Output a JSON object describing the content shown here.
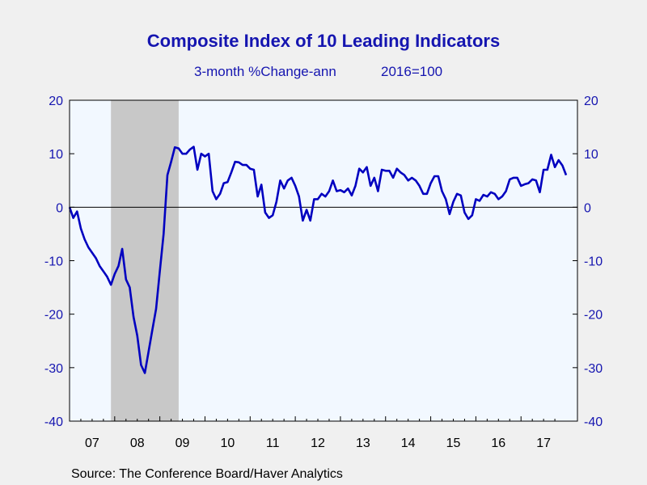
{
  "chart_data": {
    "type": "line",
    "title": "Composite Index of 10 Leading Indicators",
    "subtitle_left": "3-month %Change-ann",
    "subtitle_right": "2016=100",
    "source": "Source:  The Conference Board/Haver Analytics",
    "ylim": [
      -40,
      20
    ],
    "yticks": [
      "20",
      "10",
      "0",
      "-10",
      "-20",
      "-30",
      "-40"
    ],
    "xlim": [
      2007.0,
      2018.25
    ],
    "xticks": [
      "07",
      "08",
      "09",
      "10",
      "11",
      "12",
      "13",
      "14",
      "15",
      "16",
      "17"
    ],
    "grid": false,
    "recession_shading": {
      "start": 2007.917,
      "end": 2009.417
    },
    "colors": {
      "line": "#0000c0",
      "text": "#1515b0",
      "recession": "#c8c8c8",
      "plot_bg": "#f2f8ff",
      "page_bg": "#f0f0f0"
    },
    "series": [
      {
        "values": [
          [
            2007.0,
            0.0
          ],
          [
            2007.083,
            -2.0
          ],
          [
            2007.167,
            -0.8
          ],
          [
            2007.25,
            -4.0
          ],
          [
            2007.333,
            -6.0
          ],
          [
            2007.417,
            -7.5
          ],
          [
            2007.5,
            -8.5
          ],
          [
            2007.583,
            -9.5
          ],
          [
            2007.667,
            -11.0
          ],
          [
            2007.75,
            -12.0
          ],
          [
            2007.833,
            -13.0
          ],
          [
            2007.917,
            -14.5
          ],
          [
            2008.0,
            -12.5
          ],
          [
            2008.083,
            -11.0
          ],
          [
            2008.167,
            -7.8
          ],
          [
            2008.25,
            -13.5
          ],
          [
            2008.333,
            -15.0
          ],
          [
            2008.417,
            -20.5
          ],
          [
            2008.5,
            -24.0
          ],
          [
            2008.583,
            -29.5
          ],
          [
            2008.667,
            -31.0
          ],
          [
            2008.75,
            -27.0
          ],
          [
            2008.833,
            -23.0
          ],
          [
            2008.917,
            -19.0
          ],
          [
            2009.0,
            -12.0
          ],
          [
            2009.083,
            -5.0
          ],
          [
            2009.167,
            6.0
          ],
          [
            2009.25,
            8.5
          ],
          [
            2009.333,
            11.2
          ],
          [
            2009.417,
            11.0
          ],
          [
            2009.5,
            10.0
          ],
          [
            2009.583,
            10.0
          ],
          [
            2009.667,
            10.8
          ],
          [
            2009.75,
            11.3
          ],
          [
            2009.833,
            7.0
          ],
          [
            2009.917,
            10.0
          ],
          [
            2010.0,
            9.5
          ],
          [
            2010.083,
            10.0
          ],
          [
            2010.167,
            3.0
          ],
          [
            2010.25,
            1.5
          ],
          [
            2010.333,
            2.5
          ],
          [
            2010.417,
            4.5
          ],
          [
            2010.5,
            4.7
          ],
          [
            2010.583,
            6.5
          ],
          [
            2010.667,
            8.5
          ],
          [
            2010.75,
            8.4
          ],
          [
            2010.833,
            7.9
          ],
          [
            2010.917,
            7.9
          ],
          [
            2011.0,
            7.2
          ],
          [
            2011.083,
            7.0
          ],
          [
            2011.167,
            2.0
          ],
          [
            2011.25,
            4.2
          ],
          [
            2011.333,
            -1.0
          ],
          [
            2011.417,
            -2.0
          ],
          [
            2011.5,
            -1.5
          ],
          [
            2011.583,
            1.0
          ],
          [
            2011.667,
            5.0
          ],
          [
            2011.75,
            3.5
          ],
          [
            2011.833,
            5.0
          ],
          [
            2011.917,
            5.5
          ],
          [
            2012.0,
            4.0
          ],
          [
            2012.083,
            2.0
          ],
          [
            2012.167,
            -2.5
          ],
          [
            2012.25,
            -0.5
          ],
          [
            2012.333,
            -2.5
          ],
          [
            2012.417,
            1.5
          ],
          [
            2012.5,
            1.5
          ],
          [
            2012.583,
            2.5
          ],
          [
            2012.667,
            2.0
          ],
          [
            2012.75,
            3.0
          ],
          [
            2012.833,
            5.0
          ],
          [
            2012.917,
            3.0
          ],
          [
            2013.0,
            3.2
          ],
          [
            2013.083,
            2.8
          ],
          [
            2013.167,
            3.5
          ],
          [
            2013.25,
            2.2
          ],
          [
            2013.333,
            4.0
          ],
          [
            2013.417,
            7.2
          ],
          [
            2013.5,
            6.5
          ],
          [
            2013.583,
            7.5
          ],
          [
            2013.667,
            4.0
          ],
          [
            2013.75,
            5.5
          ],
          [
            2013.833,
            3.0
          ],
          [
            2013.917,
            7.0
          ],
          [
            2014.0,
            6.8
          ],
          [
            2014.083,
            6.8
          ],
          [
            2014.167,
            5.5
          ],
          [
            2014.25,
            7.2
          ],
          [
            2014.333,
            6.5
          ],
          [
            2014.417,
            6.0
          ],
          [
            2014.5,
            5.0
          ],
          [
            2014.583,
            5.5
          ],
          [
            2014.667,
            5.0
          ],
          [
            2014.75,
            4.0
          ],
          [
            2014.833,
            2.5
          ],
          [
            2014.917,
            2.5
          ],
          [
            2015.0,
            4.5
          ],
          [
            2015.083,
            5.8
          ],
          [
            2015.167,
            5.8
          ],
          [
            2015.25,
            3.0
          ],
          [
            2015.333,
            1.5
          ],
          [
            2015.417,
            -1.3
          ],
          [
            2015.5,
            1.0
          ],
          [
            2015.583,
            2.5
          ],
          [
            2015.667,
            2.2
          ],
          [
            2015.75,
            -1.0
          ],
          [
            2015.833,
            -2.2
          ],
          [
            2015.917,
            -1.5
          ],
          [
            2016.0,
            1.5
          ],
          [
            2016.083,
            1.2
          ],
          [
            2016.167,
            2.3
          ],
          [
            2016.25,
            2.0
          ],
          [
            2016.333,
            2.8
          ],
          [
            2016.417,
            2.5
          ],
          [
            2016.5,
            1.5
          ],
          [
            2016.583,
            2.0
          ],
          [
            2016.667,
            3.0
          ],
          [
            2016.75,
            5.2
          ],
          [
            2016.833,
            5.5
          ],
          [
            2016.917,
            5.5
          ],
          [
            2017.0,
            4.0
          ],
          [
            2017.083,
            4.3
          ],
          [
            2017.167,
            4.5
          ],
          [
            2017.25,
            5.2
          ],
          [
            2017.333,
            5.0
          ],
          [
            2017.417,
            2.8
          ],
          [
            2017.5,
            7.0
          ],
          [
            2017.583,
            7.0
          ],
          [
            2017.667,
            9.8
          ],
          [
            2017.75,
            7.5
          ],
          [
            2017.833,
            8.8
          ],
          [
            2017.917,
            7.8
          ],
          [
            2018.0,
            6.0
          ]
        ]
      }
    ]
  }
}
